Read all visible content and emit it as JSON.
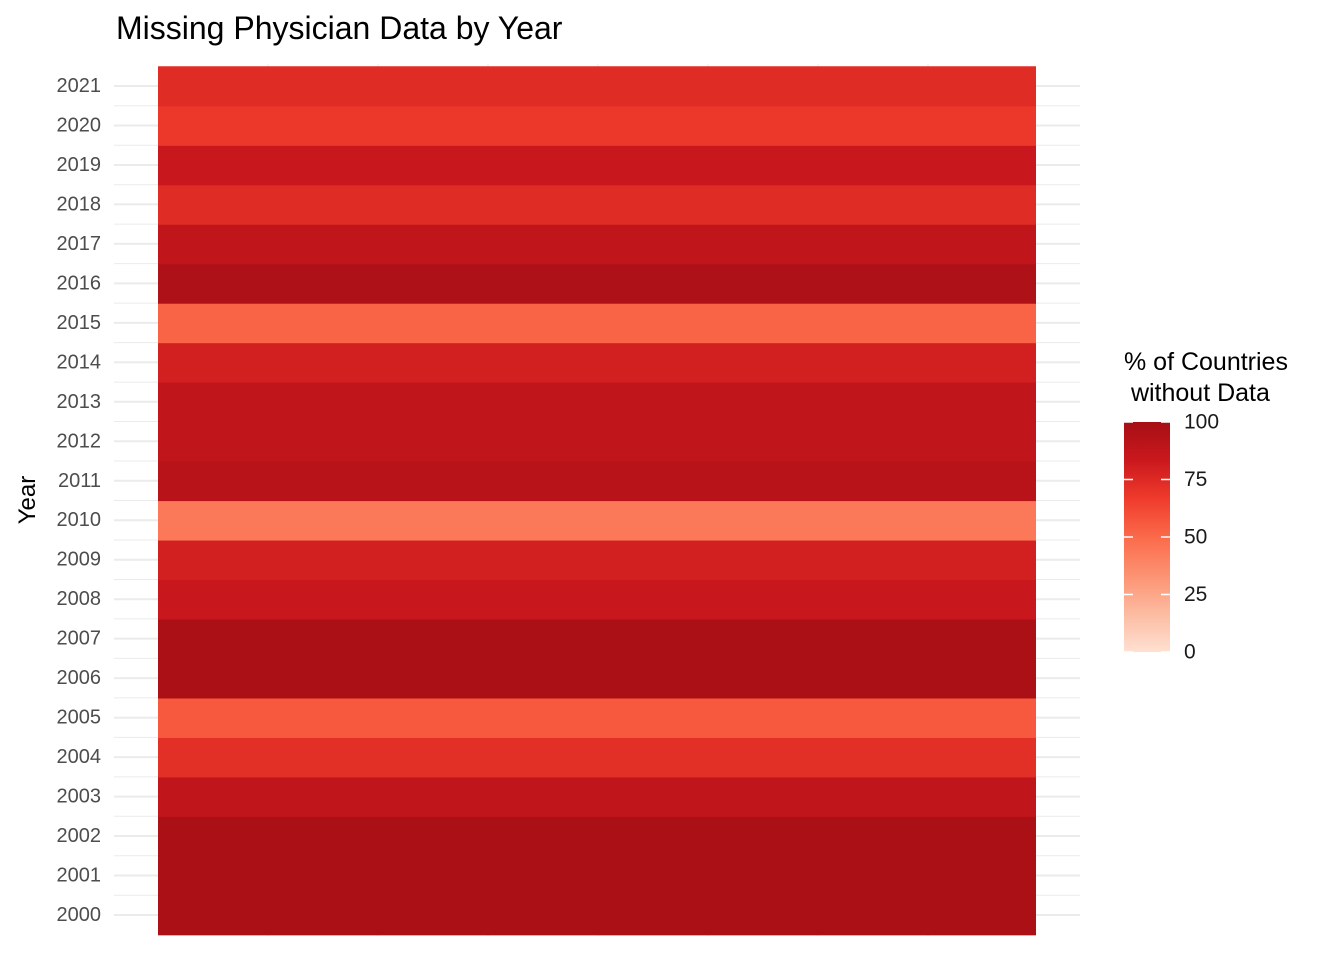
{
  "chart_data": {
    "type": "heatmap",
    "title": "Missing Physician Data by Year",
    "xlabel": "",
    "ylabel": "Year",
    "years": [
      2000,
      2001,
      2002,
      2003,
      2004,
      2005,
      2006,
      2007,
      2008,
      2009,
      2010,
      2011,
      2012,
      2013,
      2014,
      2015,
      2016,
      2017,
      2018,
      2019,
      2020,
      2021
    ],
    "values": [
      98,
      98,
      98,
      88,
      72,
      56,
      98,
      98,
      84,
      80,
      44,
      92,
      88,
      88,
      80,
      52,
      96,
      88,
      74,
      84,
      68,
      74
    ],
    "legend": {
      "title": "% of Countries\n without Data",
      "ticks": [
        0,
        25,
        50,
        75,
        100
      ],
      "range": [
        0,
        100
      ],
      "placement": "right"
    },
    "color_scale": [
      "#fee0d2",
      "#fcbba1",
      "#fc9272",
      "#fb6a4a",
      "#ef3b2c",
      "#cb181d",
      "#a50f15"
    ],
    "grid": true,
    "grid_color": "#ebebeb"
  }
}
